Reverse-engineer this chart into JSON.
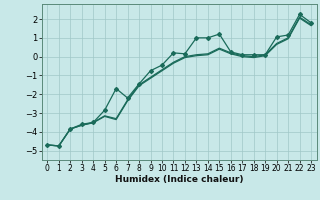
{
  "xlabel": "Humidex (Indice chaleur)",
  "bg_color": "#c8e8e8",
  "grid_color": "#a0c8c8",
  "line_color": "#1a6b5a",
  "xlim": [
    -0.5,
    23.5
  ],
  "ylim": [
    -5.5,
    2.8
  ],
  "xticks": [
    0,
    1,
    2,
    3,
    4,
    5,
    6,
    7,
    8,
    9,
    10,
    11,
    12,
    13,
    14,
    15,
    16,
    17,
    18,
    19,
    20,
    21,
    22,
    23
  ],
  "yticks": [
    -5,
    -4,
    -3,
    -2,
    -1,
    0,
    1,
    2
  ],
  "series1_x": [
    0,
    1,
    2,
    3,
    4,
    5,
    6,
    7,
    8,
    9,
    10,
    11,
    12,
    13,
    14,
    15,
    16,
    17,
    18,
    19,
    20,
    21,
    22,
    23
  ],
  "series1_y": [
    -4.7,
    -4.75,
    -3.85,
    -3.6,
    -3.5,
    -2.85,
    -1.7,
    -2.2,
    -1.45,
    -0.75,
    -0.45,
    0.2,
    0.15,
    1.0,
    1.0,
    1.2,
    0.25,
    0.1,
    0.1,
    0.1,
    1.05,
    1.15,
    2.25,
    1.8
  ],
  "series2_x": [
    0,
    1,
    2,
    3,
    4,
    5,
    6,
    7,
    8,
    9,
    10,
    11,
    12,
    13,
    14,
    15,
    16,
    17,
    18,
    19,
    20,
    21,
    22,
    23
  ],
  "series2_y": [
    -4.7,
    -4.75,
    -3.85,
    -3.65,
    -3.5,
    -3.15,
    -3.3,
    -2.3,
    -1.5,
    -1.1,
    -0.7,
    -0.3,
    0.0,
    0.1,
    0.15,
    0.45,
    0.2,
    0.05,
    0.0,
    0.1,
    0.7,
    1.0,
    2.1,
    1.7
  ],
  "series3_x": [
    0,
    1,
    2,
    3,
    4,
    5,
    6,
    7,
    8,
    9,
    10,
    11,
    12,
    13,
    14,
    15,
    16,
    17,
    18,
    19,
    20,
    21,
    22,
    23
  ],
  "series3_y": [
    -4.7,
    -4.75,
    -3.85,
    -3.65,
    -3.52,
    -3.18,
    -3.35,
    -2.35,
    -1.55,
    -1.15,
    -0.75,
    -0.35,
    -0.05,
    0.05,
    0.1,
    0.4,
    0.15,
    0.0,
    -0.05,
    0.05,
    0.65,
    0.95,
    2.05,
    1.65
  ]
}
